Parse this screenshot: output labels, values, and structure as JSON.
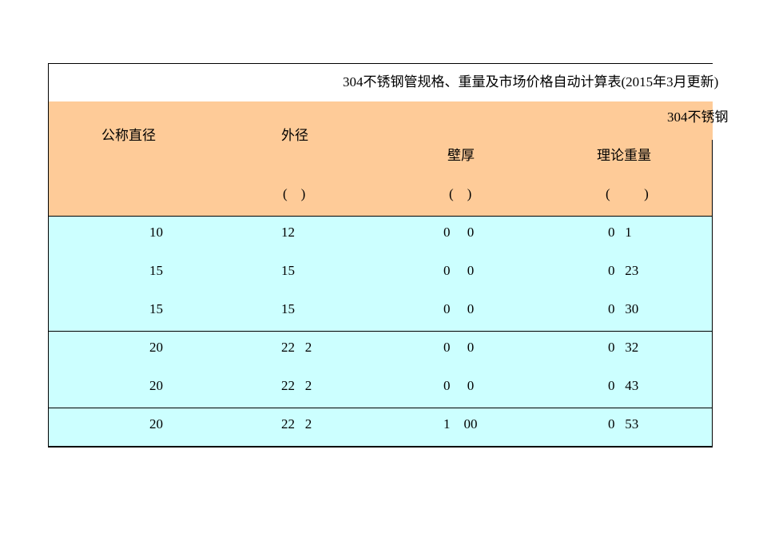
{
  "title": "304不锈钢管规格、重量及市场价格自动计算表(2015年3月更新)",
  "headers": {
    "nominal_diameter": "公称直径",
    "outer_diameter": "外径",
    "group": "304不锈钢",
    "wall_thickness": "壁厚",
    "theoretical_weight": "理论重量",
    "unit_outer": "(    )",
    "unit_wall": "(    )",
    "unit_weight": "(          )"
  },
  "colors": {
    "header_bg": "#fecb98",
    "data_bg": "#ccffff"
  },
  "rows": [
    {
      "nominal": "10",
      "outer": "12",
      "wall": "0     0",
      "weight": "0   1"
    },
    {
      "nominal": "15",
      "outer": "15",
      "wall": "0     0",
      "weight": "0   23"
    },
    {
      "nominal": "15",
      "outer": "15",
      "wall": "0     0",
      "weight": "0   30"
    },
    {
      "nominal": "20",
      "outer": "22   2",
      "wall": "0     0",
      "weight": "0   32"
    },
    {
      "nominal": "20",
      "outer": "22   2",
      "wall": "0     0",
      "weight": "0   43"
    },
    {
      "nominal": "20",
      "outer": "22   2",
      "wall": "1    00",
      "weight": "0   53"
    }
  ]
}
